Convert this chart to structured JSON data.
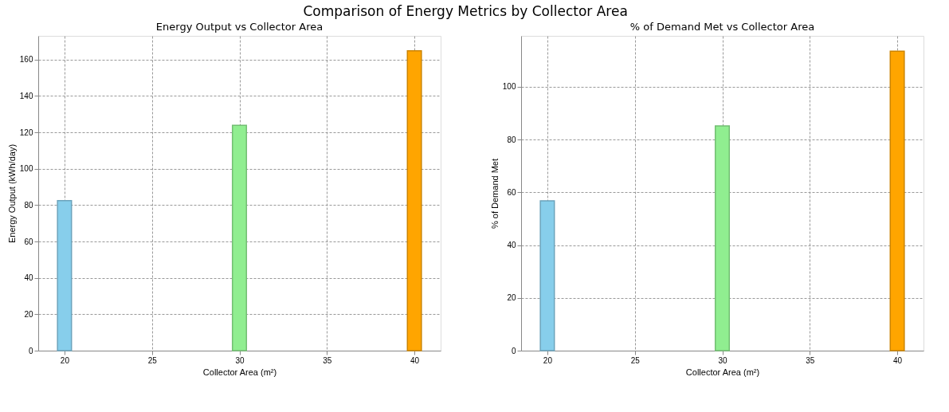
{
  "chart_data": [
    {
      "type": "bar",
      "title": "Energy Output vs Collector Area",
      "xlabel": "Collector Area (m²)",
      "ylabel": "Energy Output (kWh/day)",
      "annotations": [
        "Comparison of Energy Metrics by Collector Area"
      ],
      "x": [
        20,
        30,
        40
      ],
      "values": [
        82.5,
        123.8,
        164.8
      ],
      "colors": [
        "#87ceeb",
        "#90ee90",
        "#ffa500"
      ],
      "xlim": [
        18.5,
        41.5
      ],
      "xticks": [
        20,
        25,
        30,
        35,
        40
      ],
      "ylim": [
        0,
        173
      ],
      "yticks": [
        0,
        20,
        40,
        60,
        80,
        100,
        120,
        140,
        160
      ],
      "grid": true,
      "legend": false
    },
    {
      "type": "bar",
      "title": "% of Demand Met vs Collector Area",
      "xlabel": "Collector Area (m²)",
      "ylabel": "% of Demand Met",
      "x": [
        20,
        30,
        40
      ],
      "values": [
        56.8,
        85.2,
        113.5
      ],
      "colors": [
        "#87ceeb",
        "#90ee90",
        "#ffa500"
      ],
      "xlim": [
        18.5,
        41.5
      ],
      "xticks": [
        20,
        25,
        30,
        35,
        40
      ],
      "ylim": [
        0,
        119.3
      ],
      "yticks": [
        0,
        20,
        40,
        60,
        80,
        100
      ],
      "grid": true,
      "legend": false
    }
  ]
}
